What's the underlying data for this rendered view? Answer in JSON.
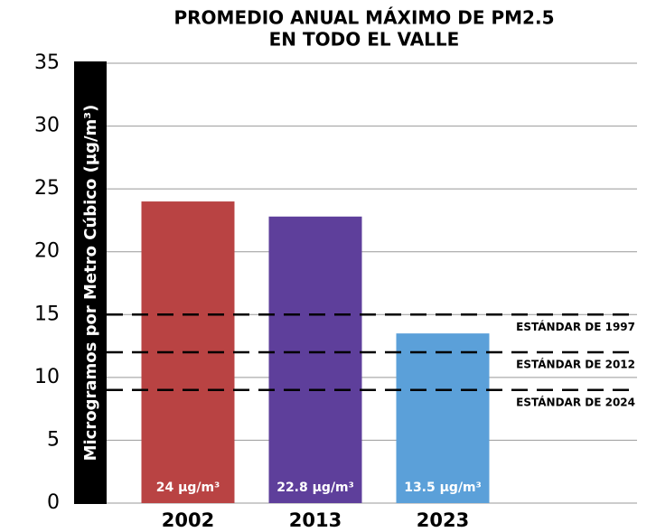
{
  "chart_data": {
    "type": "bar",
    "title": [
      "PROMEDIO ANUAL MÁXIMO DE PM2.5",
      "EN TODO EL VALLE"
    ],
    "y_label": "Microgramos por Metro Cúbico (µg/m³)",
    "categories": [
      "2002",
      "2013",
      "2023"
    ],
    "values": [
      24,
      22.8,
      13.5
    ],
    "value_labels": [
      "24 µg/m³",
      "22.8 µg/m³",
      "13.5 µg/m³"
    ],
    "colors": [
      "#b94343",
      "#5e3f9b",
      "#5ba0d9"
    ],
    "ylim": [
      0,
      35
    ],
    "yticks": [
      0,
      5,
      10,
      15,
      20,
      25,
      30,
      35
    ],
    "grid": true,
    "reference_lines": [
      {
        "value": 15,
        "label": "ESTÁNDAR DE 1997"
      },
      {
        "value": 12,
        "label": "ESTÁNDAR DE 2012"
      },
      {
        "value": 9,
        "label": "ESTÁNDAR DE 2024"
      }
    ]
  }
}
